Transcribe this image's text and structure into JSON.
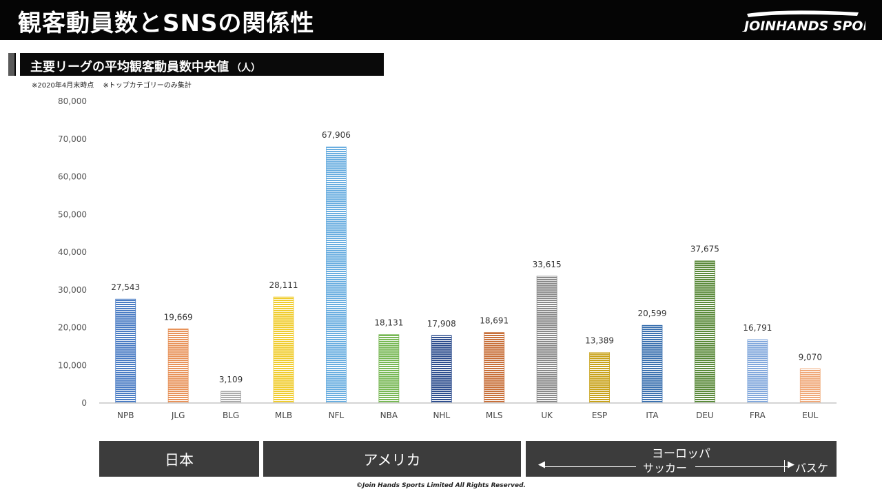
{
  "header": {
    "title": "観客動員数とSNSの関係性",
    "logo_text": "JOINHANDS SPORTS"
  },
  "subheader": {
    "title": "主要リーグの平均観客動員数中央値",
    "unit": "（人）",
    "note": "※2020年4月末時点　 ※トップカテゴリーのみ集計"
  },
  "chart_data": {
    "type": "bar",
    "categories": [
      "NPB",
      "JLG",
      "BLG",
      "MLB",
      "NFL",
      "NBA",
      "NHL",
      "MLS",
      "UK",
      "ESP",
      "ITA",
      "DEU",
      "FRA",
      "EUL"
    ],
    "values": [
      27543,
      19669,
      3109,
      28111,
      67906,
      18131,
      17908,
      18691,
      33615,
      13389,
      20599,
      37675,
      16791,
      9070
    ],
    "value_labels": [
      "27,543",
      "19,669",
      "3,109",
      "28,111",
      "67,906",
      "18,131",
      "17,908",
      "18,691",
      "33,615",
      "13,389",
      "20,599",
      "37,675",
      "16,791",
      "9,070"
    ],
    "colors": [
      "#4a7cc4",
      "#e8935a",
      "#aaaaaa",
      "#f0cc2e",
      "#6aaee0",
      "#78b855",
      "#2e4e8e",
      "#c8703a",
      "#8a8a8a",
      "#c8a21a",
      "#3c72b0",
      "#5a8a3a",
      "#82a8dc",
      "#f0a878"
    ],
    "ylim": [
      0,
      80000
    ],
    "yticks": [
      "0",
      "10,000",
      "20,000",
      "30,000",
      "40,000",
      "50,000",
      "60,000",
      "70,000",
      "80,000"
    ],
    "ytick_values": [
      0,
      10000,
      20000,
      30000,
      40000,
      50000,
      60000,
      70000,
      80000
    ],
    "grid": false,
    "legend": "none",
    "title": "",
    "xlabel": "",
    "ylabel": ""
  },
  "regions": {
    "japan": "日本",
    "america": "アメリカ",
    "europe": "ヨーロッパ",
    "soccer": "サッカー",
    "basketball": "バスケ"
  },
  "footer": "©Join Hands Sports Limited All Rights Reserved."
}
